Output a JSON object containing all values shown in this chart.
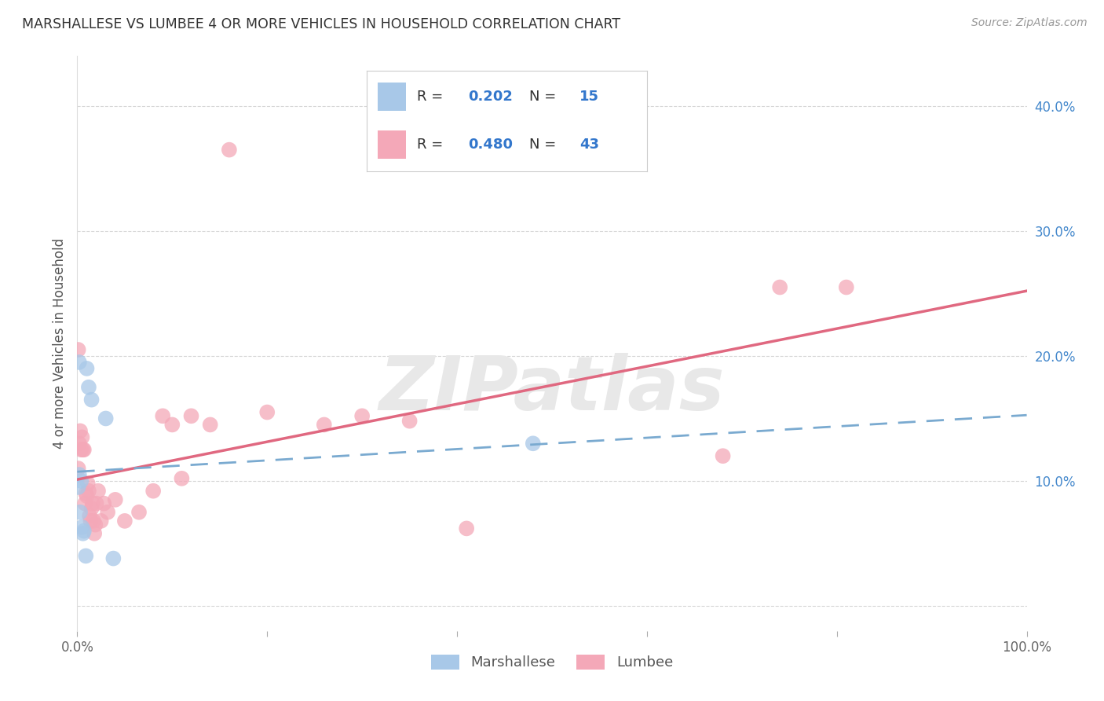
{
  "title": "MARSHALLESE VS LUMBEE 4 OR MORE VEHICLES IN HOUSEHOLD CORRELATION CHART",
  "source": "Source: ZipAtlas.com",
  "ylabel": "4 or more Vehicles in Household",
  "xlim": [
    0,
    1.0
  ],
  "ylim": [
    -0.02,
    0.44
  ],
  "marshallese_R": "0.202",
  "marshallese_N": "15",
  "lumbee_R": "0.480",
  "lumbee_N": "43",
  "marshallese_color": "#A8C8E8",
  "lumbee_color": "#F4A8B8",
  "marshallese_line_color": "#7AAAD0",
  "lumbee_line_color": "#E06880",
  "legend_color": "#3377CC",
  "watermark_text": "ZIPatlas",
  "background_color": "#FFFFFF",
  "marshallese_x": [
    0.001,
    0.002,
    0.002,
    0.003,
    0.004,
    0.005,
    0.006,
    0.007,
    0.009,
    0.01,
    0.012,
    0.015,
    0.03,
    0.038,
    0.48
  ],
  "marshallese_y": [
    0.095,
    0.105,
    0.195,
    0.075,
    0.1,
    0.063,
    0.058,
    0.06,
    0.04,
    0.19,
    0.175,
    0.165,
    0.15,
    0.038,
    0.13
  ],
  "lumbee_x": [
    0.001,
    0.001,
    0.002,
    0.003,
    0.004,
    0.005,
    0.006,
    0.007,
    0.008,
    0.009,
    0.01,
    0.011,
    0.012,
    0.013,
    0.014,
    0.015,
    0.016,
    0.017,
    0.018,
    0.019,
    0.02,
    0.022,
    0.025,
    0.028,
    0.032,
    0.04,
    0.05,
    0.065,
    0.08,
    0.09,
    0.1,
    0.11,
    0.12,
    0.14,
    0.16,
    0.2,
    0.26,
    0.3,
    0.35,
    0.41,
    0.68,
    0.74,
    0.81
  ],
  "lumbee_y": [
    0.205,
    0.11,
    0.13,
    0.14,
    0.125,
    0.135,
    0.125,
    0.125,
    0.082,
    0.09,
    0.088,
    0.098,
    0.092,
    0.072,
    0.068,
    0.078,
    0.082,
    0.068,
    0.058,
    0.065,
    0.082,
    0.092,
    0.068,
    0.082,
    0.075,
    0.085,
    0.068,
    0.075,
    0.092,
    0.152,
    0.145,
    0.102,
    0.152,
    0.145,
    0.365,
    0.155,
    0.145,
    0.152,
    0.148,
    0.062,
    0.12,
    0.255,
    0.255
  ]
}
